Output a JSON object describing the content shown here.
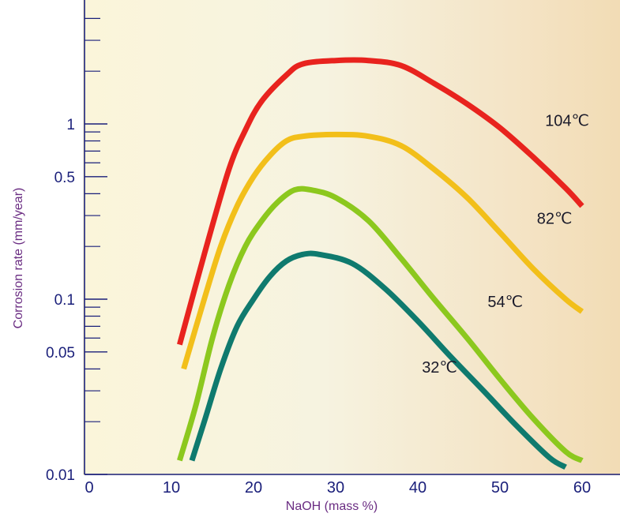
{
  "chart_data": {
    "type": "line",
    "title": "",
    "xlabel": "NaOH (mass %)",
    "ylabel": "Corrosion rate  (mm/year)",
    "xlim": [
      0,
      65
    ],
    "ylim": [
      0.01,
      5
    ],
    "yscale": "log",
    "grid": false,
    "x_ticks": [
      "0",
      "10",
      "20",
      "30",
      "40",
      "50",
      "60"
    ],
    "y_tick_labels": [
      {
        "value": 1,
        "label": "1"
      },
      {
        "value": 0.5,
        "label": "0.5"
      },
      {
        "value": 0.1,
        "label": "0.1"
      },
      {
        "value": 0.05,
        "label": "0.05"
      },
      {
        "value": 0.01,
        "label": "0.01"
      }
    ],
    "y_minor_ticks": [
      0.02,
      0.03,
      0.04,
      0.06,
      0.07,
      0.08,
      0.09,
      0.2,
      0.3,
      0.4,
      0.6,
      0.7,
      0.8,
      0.9,
      2,
      3,
      4
    ],
    "series": [
      {
        "name": "104℃",
        "color": "#e8231e",
        "x": [
          11,
          14,
          17,
          19,
          21,
          24,
          26,
          30,
          34,
          38,
          42,
          46,
          50,
          54,
          58,
          60
        ],
        "y": [
          0.055,
          0.18,
          0.55,
          0.92,
          1.35,
          1.9,
          2.2,
          2.3,
          2.3,
          2.15,
          1.7,
          1.3,
          0.95,
          0.65,
          0.43,
          0.34
        ]
      },
      {
        "name": "82℃",
        "color": "#f2bf1a",
        "x": [
          11.5,
          14,
          16,
          18,
          20,
          22,
          24,
          26,
          30,
          34,
          38,
          42,
          46,
          50,
          54,
          58,
          60
        ],
        "y": [
          0.04,
          0.1,
          0.2,
          0.34,
          0.5,
          0.66,
          0.8,
          0.85,
          0.87,
          0.85,
          0.75,
          0.55,
          0.38,
          0.24,
          0.15,
          0.1,
          0.085
        ]
      },
      {
        "name": "54℃",
        "color": "#8cc81e",
        "x": [
          11,
          13,
          15,
          17,
          19,
          21,
          23,
          25,
          27,
          30,
          34,
          38,
          42,
          46,
          50,
          54,
          58,
          60
        ],
        "y": [
          0.012,
          0.025,
          0.06,
          0.12,
          0.2,
          0.28,
          0.36,
          0.42,
          0.42,
          0.38,
          0.28,
          0.17,
          0.1,
          0.06,
          0.035,
          0.021,
          0.0135,
          0.012
        ]
      },
      {
        "name": "32℃",
        "color": "#0f7a6e",
        "x": [
          12.5,
          14,
          16,
          18,
          20,
          22,
          24,
          26,
          28,
          32,
          36,
          40,
          44,
          48,
          52,
          56,
          58
        ],
        "y": [
          0.012,
          0.02,
          0.04,
          0.07,
          0.1,
          0.135,
          0.165,
          0.18,
          0.18,
          0.16,
          0.115,
          0.075,
          0.047,
          0.03,
          0.019,
          0.0125,
          0.011
        ]
      }
    ],
    "series_label_positions_data": [
      {
        "x": 55.5,
        "y": 1.05
      },
      {
        "x": 54.5,
        "y": 0.29
      },
      {
        "x": 48.5,
        "y": 0.097
      },
      {
        "x": 40.5,
        "y": 0.041
      }
    ]
  }
}
